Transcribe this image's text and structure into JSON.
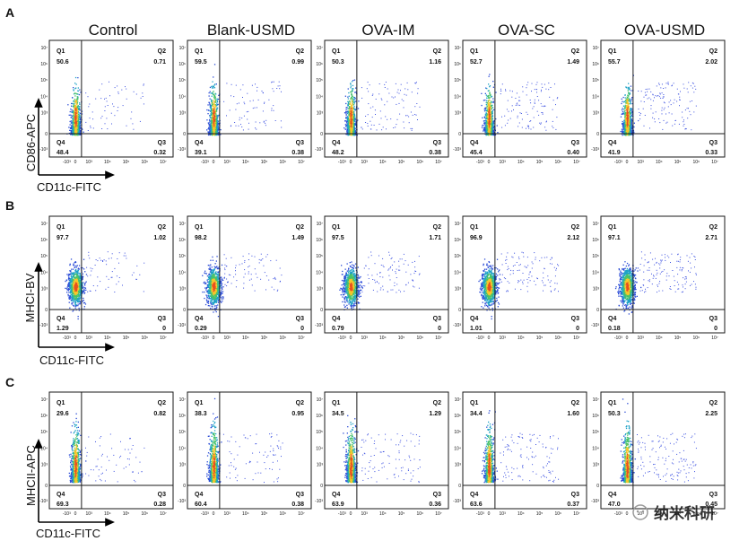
{
  "panel_letters": [
    "A",
    "B",
    "C"
  ],
  "column_titles": [
    "Control",
    "Blank-USMD",
    "OVA-IM",
    "OVA-SC",
    "OVA-USMD"
  ],
  "watermark": "纳米科研",
  "chart_data": [
    {
      "type": "scatter",
      "panel": "A",
      "xlabel": "CD11c-FITC",
      "ylabel": "CD86-APC",
      "x_ticks": [
        "-10³",
        "0",
        "10³",
        "10⁴",
        "10⁵",
        "10⁶",
        "10⁷"
      ],
      "y_ticks": [
        "10⁷",
        "10⁶",
        "10⁵",
        "10⁴",
        "10³",
        "0",
        "-10³"
      ],
      "quadrant_names": [
        "Q1",
        "Q2",
        "Q3",
        "Q4"
      ],
      "samples": [
        {
          "name": "Control",
          "Q1": "50.6",
          "Q2": "0.71",
          "Q3": "0.32",
          "Q4": "48.4"
        },
        {
          "name": "Blank-USMD",
          "Q1": "59.5",
          "Q2": "0.99",
          "Q3": "0.38",
          "Q4": "39.1"
        },
        {
          "name": "OVA-IM",
          "Q1": "50.3",
          "Q2": "1.16",
          "Q3": "0.38",
          "Q4": "48.2"
        },
        {
          "name": "OVA-SC",
          "Q1": "52.7",
          "Q2": "1.49",
          "Q3": "0.40",
          "Q4": "45.4"
        },
        {
          "name": "OVA-USMD",
          "Q1": "55.7",
          "Q2": "2.02",
          "Q3": "0.33",
          "Q4": "41.9"
        }
      ]
    },
    {
      "type": "scatter",
      "panel": "B",
      "xlabel": "CD11c-FITC",
      "ylabel": "MHCI-BV",
      "x_ticks": [
        "-10³",
        "0",
        "10³",
        "10⁴",
        "10⁵",
        "10⁶",
        "10⁷"
      ],
      "y_ticks": [
        "10⁷",
        "10⁶",
        "10⁵",
        "10⁴",
        "10³",
        "0",
        "-10³"
      ],
      "quadrant_names": [
        "Q1",
        "Q2",
        "Q3",
        "Q4"
      ],
      "samples": [
        {
          "name": "Control",
          "Q1": "97.7",
          "Q2": "1.02",
          "Q3": "0",
          "Q4": "1.29"
        },
        {
          "name": "Blank-USMD",
          "Q1": "98.2",
          "Q2": "1.49",
          "Q3": "0",
          "Q4": "0.29"
        },
        {
          "name": "OVA-IM",
          "Q1": "97.5",
          "Q2": "1.71",
          "Q3": "0",
          "Q4": "0.79"
        },
        {
          "name": "OVA-SC",
          "Q1": "96.9",
          "Q2": "2.12",
          "Q3": "0",
          "Q4": "1.01"
        },
        {
          "name": "OVA-USMD",
          "Q1": "97.1",
          "Q2": "2.71",
          "Q3": "0",
          "Q4": "0.18"
        }
      ]
    },
    {
      "type": "scatter",
      "panel": "C",
      "xlabel": "CD11c-FITC",
      "ylabel": "MHCII-APC",
      "x_ticks": [
        "-10³",
        "0",
        "10³",
        "10⁴",
        "10⁵",
        "10⁶",
        "10⁷"
      ],
      "y_ticks": [
        "10⁷",
        "10⁶",
        "10⁵",
        "10⁴",
        "10³",
        "0",
        "-10³"
      ],
      "quadrant_names": [
        "Q1",
        "Q2",
        "Q3",
        "Q4"
      ],
      "samples": [
        {
          "name": "Control",
          "Q1": "29.6",
          "Q2": "0.82",
          "Q3": "0.28",
          "Q4": "69.3"
        },
        {
          "name": "Blank-USMD",
          "Q1": "38.3",
          "Q2": "0.95",
          "Q3": "0.38",
          "Q4": "60.4"
        },
        {
          "name": "OVA-IM",
          "Q1": "34.5",
          "Q2": "1.29",
          "Q3": "0.36",
          "Q4": "63.9"
        },
        {
          "name": "OVA-SC",
          "Q1": "34.4",
          "Q2": "1.60",
          "Q3": "0.37",
          "Q4": "63.6"
        },
        {
          "name": "OVA-USMD",
          "Q1": "50.3",
          "Q2": "2.25",
          "Q3": "0.45",
          "Q4": "47.0"
        }
      ]
    }
  ]
}
